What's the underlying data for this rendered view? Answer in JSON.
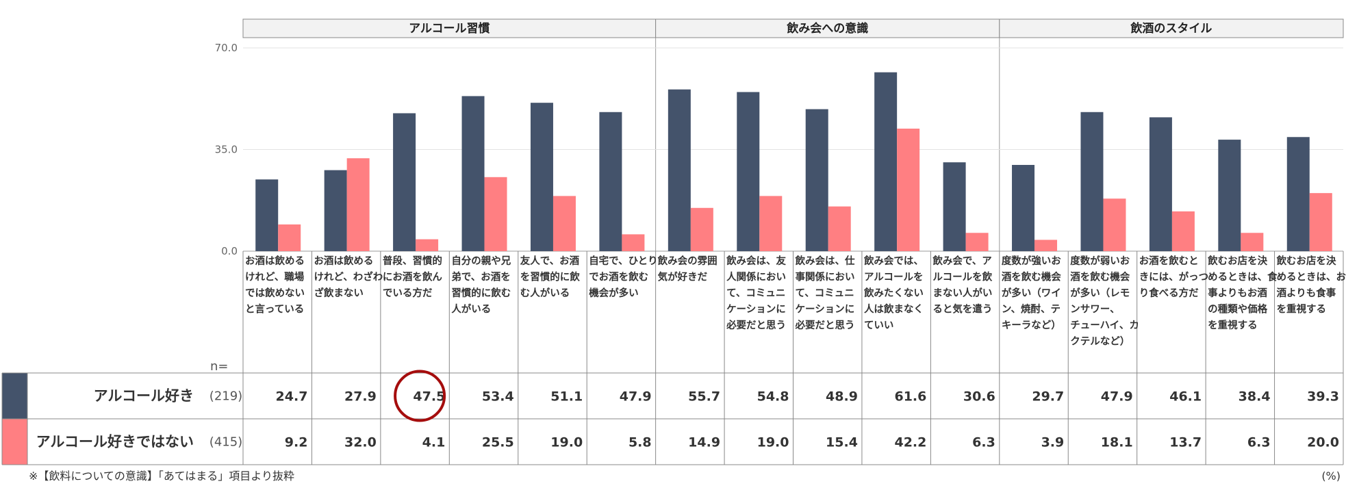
{
  "chart_data": {
    "type": "bar",
    "ylim": [
      0,
      70
    ],
    "yticks": [
      "0.0",
      "35.0",
      "70.0"
    ],
    "groups": [
      {
        "label": "アルコール習慣",
        "count": 6
      },
      {
        "label": "飲み会への意識",
        "count": 5
      },
      {
        "label": "飲酒のスタイル",
        "count": 5
      }
    ],
    "categories": [
      [
        "お酒は飲める",
        "けれど、職場",
        "では飲めない",
        "と言っている"
      ],
      [
        "お酒は飲める",
        "けれど、わざわ",
        "ざ飲まない"
      ],
      [
        "普段、習慣的",
        "にお酒を飲ん",
        "でいる方だ"
      ],
      [
        "自分の親や兄",
        "弟で、お酒を",
        "習慣的に飲む",
        "人がいる"
      ],
      [
        "友人で、お酒",
        "を習慣的に飲",
        "む人がいる"
      ],
      [
        "自宅で、ひとり",
        "でお酒を飲む",
        "機会が多い"
      ],
      [
        "飲み会の雰囲",
        "気が好きだ"
      ],
      [
        "飲み会は、友",
        "人関係におい",
        "て、コミュニ",
        "ケーションに",
        "必要だと思う"
      ],
      [
        "飲み会は、仕",
        "事関係におい",
        "て、コミュニ",
        "ケーションに",
        "必要だと思う"
      ],
      [
        "飲み会では、",
        "アルコールを",
        "飲みたくない",
        "人は飲まなく",
        "ていい"
      ],
      [
        "飲み会で、ア",
        "ルコールを飲",
        "まない人がい",
        "ると気を遣う"
      ],
      [
        "度数が強いお",
        "酒を飲む機会",
        "が多い（ワイ",
        "ン、焼酎、テ",
        "キーラなど）"
      ],
      [
        "度数が弱いお",
        "酒を飲む機会",
        "が多い（レモ",
        "ンサワー、",
        "チューハイ、カ",
        "クテルなど）"
      ],
      [
        "お酒を飲むと",
        "きには、がっつ",
        "り食べる方だ"
      ],
      [
        "飲むお店を決",
        "めるときは、食",
        "事よりもお酒",
        "の種類や価格",
        "を重視する"
      ],
      [
        "飲むお店を決",
        "めるときは、お",
        "酒よりも食事",
        "を重視する"
      ]
    ],
    "n_label": "n=",
    "series": [
      {
        "name": "アルコール好き",
        "n": "(219)",
        "color": "#44536b",
        "values": [
          24.7,
          27.9,
          47.5,
          53.4,
          51.1,
          47.9,
          55.7,
          54.8,
          48.9,
          61.6,
          30.6,
          29.7,
          47.9,
          46.1,
          38.4,
          39.3
        ],
        "labels": [
          "24.7",
          "27.9",
          "47.5",
          "53.4",
          "51.1",
          "47.9",
          "55.7",
          "54.8",
          "48.9",
          "61.6",
          "30.6",
          "29.7",
          "47.9",
          "46.1",
          "38.4",
          "39.3"
        ]
      },
      {
        "name": "アルコール好きではない",
        "n": "(415)",
        "color": "#ff7f82",
        "values": [
          9.2,
          32.0,
          4.1,
          25.5,
          19.0,
          5.8,
          14.9,
          19.0,
          15.4,
          42.2,
          6.3,
          3.9,
          18.1,
          13.7,
          6.3,
          20.0
        ],
        "labels": [
          "9.2",
          "32.0",
          "4.1",
          "25.5",
          "19.0",
          "5.8",
          "14.9",
          "19.0",
          "15.4",
          "42.2",
          "6.3",
          "3.9",
          "18.1",
          "13.7",
          "6.3",
          "20.0"
        ]
      }
    ],
    "highlight": {
      "series": 0,
      "index": 2,
      "color": "#a50d0d"
    },
    "footnote": "※【飲料についての意識】「あてはまる」項目より抜粋",
    "unit": "(%)"
  }
}
